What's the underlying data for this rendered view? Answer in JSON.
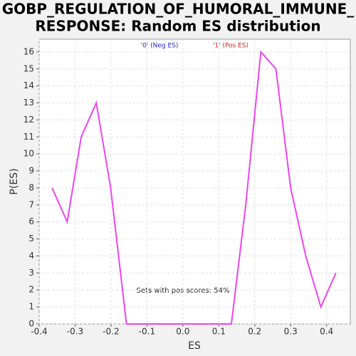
{
  "chart_data": {
    "type": "line",
    "title": [
      "GOBP_REGULATION_OF_HUMORAL_IMMUNE_",
      "RESPONSE: Random ES distribution"
    ],
    "xlabel": "ES",
    "ylabel": "P(ES)",
    "legend": [
      {
        "label": "'0' (Neg ES)",
        "color": "#2222cc"
      },
      {
        "label": "'1' (Pos ES)",
        "color": "#dd2222"
      }
    ],
    "annotation": "Sets with pos scores: 54%",
    "x": [
      -0.364,
      -0.322,
      -0.283,
      -0.241,
      -0.201,
      -0.157,
      -0.116,
      -0.074,
      -0.032,
      0.01,
      0.051,
      0.093,
      0.135,
      0.175,
      0.217,
      0.259,
      0.3,
      0.342,
      0.384,
      0.426
    ],
    "series": [
      {
        "color": "#ee44ee",
        "values": [
          8,
          6,
          11,
          13,
          8,
          0,
          0,
          0,
          0,
          0,
          0,
          0,
          0,
          7,
          16,
          15,
          8,
          4,
          1,
          3
        ]
      }
    ],
    "xlim": [
      -0.4,
      0.466
    ],
    "ylim": [
      0,
      16.75
    ],
    "xticks": [
      -0.4,
      -0.3,
      -0.2,
      -0.1,
      {
        "value": 0,
        "label": "0.0"
      },
      0.1,
      0.2,
      0.3,
      0.4
    ],
    "yticks": [
      0,
      1,
      2,
      3,
      4,
      5,
      6,
      7,
      8,
      9,
      10,
      11,
      12,
      13,
      14,
      15,
      16
    ],
    "grid": true
  }
}
